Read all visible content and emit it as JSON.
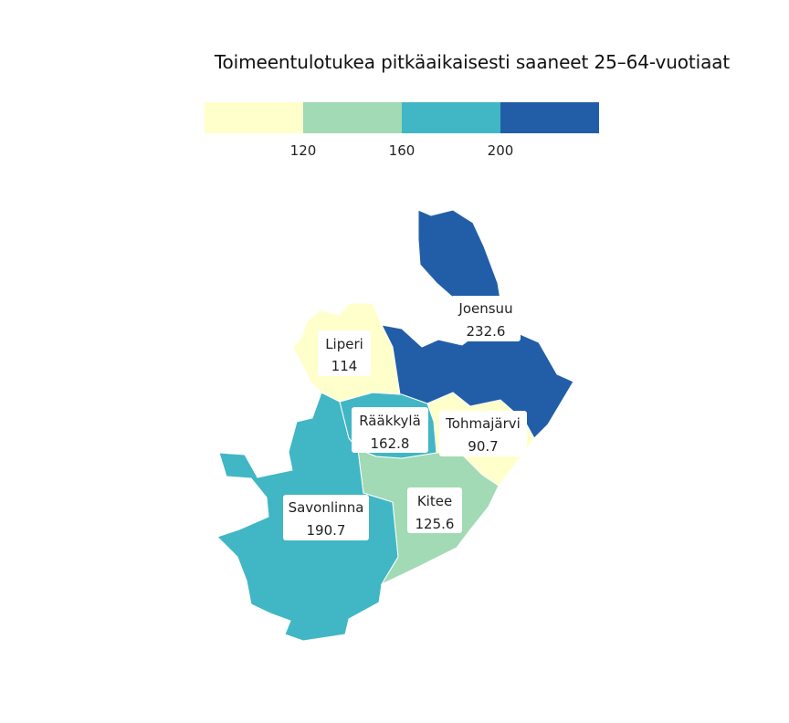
{
  "title": "Toimeentulotukea pitkäaikaisesti saaneet 25–64-vuotiaat",
  "legend": {
    "breaks": [
      "120",
      "160",
      "200"
    ],
    "colors": [
      "#ffffcc",
      "#a1dab4",
      "#41b6c4",
      "#225ea8"
    ]
  },
  "chart_data": {
    "type": "choropleth",
    "title": "Toimeentulotukea pitkäaikaisesti saaneet 25–64-vuotiaat",
    "bins": [
      {
        "max": 120,
        "color": "#ffffcc"
      },
      {
        "min": 120,
        "max": 160,
        "color": "#a1dab4"
      },
      {
        "min": 160,
        "max": 200,
        "color": "#41b6c4"
      },
      {
        "min": 200,
        "color": "#225ea8"
      }
    ],
    "regions": [
      {
        "name": "Joensuu",
        "value": "232.6",
        "color": "#225ea8"
      },
      {
        "name": "Liperi",
        "value": "114",
        "color": "#ffffcc"
      },
      {
        "name": "Rääkkylä",
        "value": "162.8",
        "color": "#41b6c4"
      },
      {
        "name": "Tohmajärvi",
        "value": "90.7",
        "color": "#ffffcc"
      },
      {
        "name": "Kitee",
        "value": "125.6",
        "color": "#a1dab4"
      },
      {
        "name": "Savonlinna",
        "value": "190.7",
        "color": "#41b6c4"
      }
    ]
  }
}
